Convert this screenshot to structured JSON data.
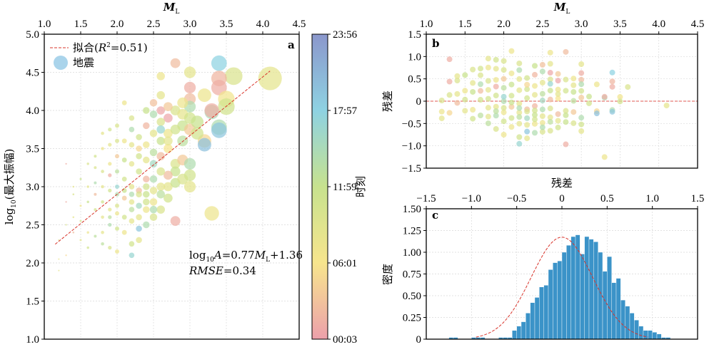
{
  "chart_data": [
    {
      "panel": "a",
      "type": "scatter",
      "xlabel_italic": "M",
      "xlabel_sub": "L",
      "ylabel": "log10(最大振幅)",
      "ylabel_pre": "log",
      "ylabel_sub": "10",
      "ylabel_post": "(最大振幅)",
      "xlim": [
        1.0,
        4.5
      ],
      "ylim": [
        1.0,
        5.0
      ],
      "xticks": [
        "1.0",
        "1.5",
        "2.0",
        "2.5",
        "3.0",
        "3.5",
        "4.0",
        "4.5"
      ],
      "yticks": [
        "1.0",
        "1.5",
        "2.0",
        "2.5",
        "3.0",
        "3.5",
        "4.0",
        "4.5",
        "5.0"
      ],
      "legend": {
        "fit_label_pre": "拟合(",
        "fit_label_r": "R",
        "fit_label_post": "=0.51)",
        "quake_label": "地震"
      },
      "fit": {
        "slope": 0.77,
        "intercept": 1.36,
        "x_range": [
          1.15,
          4.1
        ]
      },
      "equation_pre": "log",
      "equation_sub": "10",
      "equation_a": "A",
      "equation_mid": "=0.77",
      "equation_m": "M",
      "equation_msub": "L",
      "equation_post": "+1.36",
      "rmse_label": "RMSE",
      "rmse_value": "=0.34",
      "colorbar": {
        "label": "时刻",
        "ticks": [
          "00:03",
          "06:01",
          "11:59",
          "17:57",
          "23:56"
        ]
      },
      "points": [
        [
          4.1,
          4.42,
          0.35
        ],
        [
          3.6,
          4.45,
          0.4
        ],
        [
          3.4,
          4.62,
          0.75
        ],
        [
          3.4,
          4.42,
          0.08
        ],
        [
          3.4,
          4.3,
          0.05
        ],
        [
          3.5,
          4.15,
          0.28
        ],
        [
          3.5,
          4.05,
          0.45
        ],
        [
          3.4,
          3.78,
          0.6
        ],
        [
          3.4,
          3.74,
          0.8
        ],
        [
          3.3,
          3.98,
          0.62
        ],
        [
          3.3,
          4.0,
          0.05
        ],
        [
          3.2,
          4.2,
          0.3
        ],
        [
          3.2,
          3.6,
          0.2
        ],
        [
          3.2,
          3.55,
          0.82
        ],
        [
          3.3,
          2.65,
          0.3
        ],
        [
          3.0,
          3.0,
          0.35
        ],
        [
          2.8,
          4.62,
          0.1
        ],
        [
          3.0,
          4.5,
          0.35
        ],
        [
          2.6,
          4.45,
          0.3
        ],
        [
          3.0,
          4.3,
          0.05
        ],
        [
          3.0,
          4.15,
          0.1
        ],
        [
          3.0,
          4.05,
          0.6
        ],
        [
          2.8,
          4.0,
          0.4
        ],
        [
          2.9,
          3.95,
          0.35
        ],
        [
          3.0,
          3.9,
          0.45
        ],
        [
          2.9,
          3.8,
          0.5
        ],
        [
          3.0,
          3.75,
          0.15
        ],
        [
          2.7,
          3.9,
          0.02
        ],
        [
          2.6,
          3.85,
          0.4
        ],
        [
          2.7,
          3.7,
          0.3
        ],
        [
          2.8,
          3.75,
          0.45
        ],
        [
          2.9,
          3.6,
          0.55
        ],
        [
          3.1,
          3.7,
          0.45
        ],
        [
          3.1,
          3.85,
          0.5
        ],
        [
          2.6,
          4.0,
          0.03
        ],
        [
          2.5,
          4.1,
          0.12
        ],
        [
          2.7,
          4.05,
          0.15
        ],
        [
          2.6,
          3.75,
          0.7
        ],
        [
          2.5,
          3.7,
          0.35
        ],
        [
          2.4,
          3.8,
          0.08
        ],
        [
          2.4,
          3.55,
          0.3
        ],
        [
          2.5,
          3.45,
          0.55
        ],
        [
          2.6,
          3.4,
          0.1
        ],
        [
          2.7,
          3.5,
          0.25
        ],
        [
          2.8,
          3.3,
          0.4
        ],
        [
          2.9,
          3.35,
          0.15
        ],
        [
          3.0,
          3.3,
          0.6
        ],
        [
          2.8,
          3.2,
          0.5
        ],
        [
          2.7,
          3.15,
          0.1
        ],
        [
          2.6,
          3.2,
          0.4
        ],
        [
          2.5,
          3.3,
          0.65
        ],
        [
          2.4,
          3.35,
          0.35
        ],
        [
          2.3,
          3.4,
          0.45
        ],
        [
          2.3,
          3.5,
          0.2
        ],
        [
          2.2,
          3.55,
          0.35
        ],
        [
          2.2,
          3.75,
          0.6
        ],
        [
          2.1,
          3.6,
          0.3
        ],
        [
          2.0,
          3.6,
          0.4
        ],
        [
          2.0,
          3.4,
          0.15
        ],
        [
          2.1,
          3.35,
          0.5
        ],
        [
          2.2,
          3.3,
          0.35
        ],
        [
          2.3,
          3.2,
          0.45
        ],
        [
          2.4,
          3.1,
          0.08
        ],
        [
          2.5,
          3.1,
          0.6
        ],
        [
          2.6,
          3.0,
          0.35
        ],
        [
          2.7,
          2.85,
          0.45
        ],
        [
          2.8,
          2.55,
          0.05
        ],
        [
          2.6,
          2.7,
          0.4
        ],
        [
          2.5,
          2.8,
          0.3
        ],
        [
          2.4,
          2.9,
          0.5
        ],
        [
          2.3,
          2.95,
          0.1
        ],
        [
          2.2,
          3.0,
          0.35
        ],
        [
          2.1,
          3.1,
          0.45
        ],
        [
          2.0,
          3.2,
          0.55
        ],
        [
          1.9,
          3.3,
          0.3
        ],
        [
          1.9,
          3.15,
          0.05
        ],
        [
          1.8,
          3.2,
          0.4
        ],
        [
          1.8,
          3.0,
          0.35
        ],
        [
          1.9,
          2.95,
          0.45
        ],
        [
          2.0,
          2.9,
          0.6
        ],
        [
          2.1,
          2.85,
          0.15
        ],
        [
          2.2,
          2.8,
          0.35
        ],
        [
          2.3,
          2.75,
          0.65
        ],
        [
          2.4,
          2.7,
          0.3
        ],
        [
          2.5,
          2.6,
          0.4
        ],
        [
          2.4,
          2.5,
          0.6
        ],
        [
          2.3,
          2.45,
          0.8
        ],
        [
          2.2,
          2.55,
          0.35
        ],
        [
          2.1,
          2.6,
          0.45
        ],
        [
          2.0,
          2.65,
          0.3
        ],
        [
          1.9,
          2.7,
          0.35
        ],
        [
          1.8,
          2.8,
          0.45
        ],
        [
          1.7,
          2.9,
          0.1
        ],
        [
          1.7,
          3.05,
          0.6
        ],
        [
          1.6,
          3.0,
          0.35
        ],
        [
          1.6,
          2.8,
          0.5
        ],
        [
          1.5,
          2.75,
          0.3
        ],
        [
          1.5,
          2.55,
          0.45
        ],
        [
          1.4,
          2.6,
          0.35
        ],
        [
          1.4,
          2.4,
          0.1
        ],
        [
          1.6,
          2.4,
          0.3
        ],
        [
          1.7,
          2.35,
          0.55
        ],
        [
          1.8,
          2.4,
          0.35
        ],
        [
          1.9,
          2.5,
          0.6
        ],
        [
          2.0,
          2.45,
          0.45
        ],
        [
          2.1,
          2.4,
          0.3
        ],
        [
          2.2,
          2.25,
          0.45
        ],
        [
          2.3,
          2.3,
          0.35
        ],
        [
          2.2,
          2.1,
          0.7
        ],
        [
          2.0,
          2.15,
          0.3
        ],
        [
          1.9,
          2.2,
          0.4
        ],
        [
          1.8,
          2.25,
          0.55
        ],
        [
          1.6,
          2.2,
          0.45
        ],
        [
          1.5,
          2.3,
          0.35
        ],
        [
          1.3,
          2.1,
          0.2
        ],
        [
          1.2,
          2.05,
          0.3
        ],
        [
          1.2,
          1.9,
          0.35
        ],
        [
          1.3,
          2.5,
          0.4
        ],
        [
          1.3,
          2.8,
          0.05
        ],
        [
          1.3,
          3.3,
          0.05
        ],
        [
          1.2,
          2.3,
          0.4
        ],
        [
          1.4,
          2.9,
          0.4
        ],
        [
          1.4,
          3.0,
          0.35
        ],
        [
          1.5,
          3.1,
          0.5
        ],
        [
          1.6,
          3.3,
          0.4
        ],
        [
          1.7,
          3.4,
          0.45
        ],
        [
          1.8,
          3.5,
          0.3
        ],
        [
          1.9,
          3.55,
          0.35
        ],
        [
          1.7,
          3.25,
          0.4
        ],
        [
          2.0,
          3.0,
          0.7
        ],
        [
          2.1,
          2.95,
          0.5
        ],
        [
          2.2,
          2.9,
          0.6
        ],
        [
          2.3,
          2.9,
          0.4
        ],
        [
          2.4,
          3.0,
          0.45
        ],
        [
          2.5,
          2.95,
          0.35
        ],
        [
          2.6,
          2.9,
          0.55
        ],
        [
          2.7,
          3.0,
          0.35
        ],
        [
          2.8,
          3.05,
          0.5
        ],
        [
          2.9,
          3.1,
          0.4
        ],
        [
          3.0,
          3.15,
          0.45
        ],
        [
          2.6,
          3.6,
          0.5
        ],
        [
          2.7,
          3.6,
          0.35
        ],
        [
          2.3,
          3.65,
          0.45
        ],
        [
          2.2,
          3.9,
          0.4
        ],
        [
          2.1,
          4.1,
          0.3
        ],
        [
          2.5,
          3.95,
          0.6
        ],
        [
          2.6,
          4.2,
          0.35
        ],
        [
          2.4,
          4.0,
          0.5
        ],
        [
          2.9,
          4.1,
          0.3
        ],
        [
          2.0,
          3.8,
          0.4
        ],
        [
          1.9,
          3.75,
          0.45
        ],
        [
          1.8,
          3.7,
          0.35
        ],
        [
          2.2,
          2.7,
          0.55
        ],
        [
          2.3,
          2.6,
          0.35
        ],
        [
          2.4,
          2.8,
          0.45
        ],
        [
          2.5,
          2.7,
          0.6
        ],
        [
          2.0,
          2.75,
          0.4
        ],
        [
          1.9,
          2.6,
          0.55
        ],
        [
          1.8,
          2.6,
          0.35
        ],
        [
          1.7,
          2.7,
          0.45
        ]
      ]
    },
    {
      "panel": "b",
      "type": "scatter",
      "xlabel_italic": "M",
      "xlabel_sub": "L",
      "ylabel": "残差",
      "xlim": [
        1.0,
        4.5
      ],
      "ylim": [
        -1.5,
        1.5
      ],
      "xticks": [
        "1.0",
        "1.5",
        "2.0",
        "2.5",
        "3.0",
        "3.5",
        "4.0",
        "4.5"
      ],
      "yticks": [
        "−1.5",
        "−1.0",
        "−0.5",
        "0",
        "0.5",
        "1.0",
        "1.5"
      ],
      "zero_line": 0
    },
    {
      "panel": "c",
      "type": "bar",
      "xlabel": "残差",
      "ylabel": "密度",
      "xlim": [
        -1.5,
        1.5
      ],
      "ylim": [
        0,
        1.5
      ],
      "xticks": [
        "−1.5",
        "−1.0",
        "−0.5",
        "0",
        "0.5",
        "1.0",
        "1.5"
      ],
      "yticks": [
        "0",
        "0.25",
        "0.50",
        "0.75",
        "1.00",
        "1.25",
        "1.50"
      ],
      "bin_width": 0.05,
      "bin_start": -1.25,
      "values": [
        0.02,
        0.02,
        0,
        0,
        0,
        0.02,
        0.02,
        0.02,
        0,
        0,
        0,
        0.02,
        0.02,
        0.02,
        0.1,
        0.15,
        0.2,
        0.3,
        0.42,
        0.48,
        0.6,
        0.62,
        0.8,
        0.88,
        0.9,
        1.0,
        1.08,
        1.18,
        1.2,
        0.98,
        1.18,
        1.15,
        1.12,
        1.0,
        0.78,
        0.95,
        0.65,
        0.7,
        0.45,
        0.38,
        0.3,
        0.22,
        0.15,
        0.1,
        0.1,
        0.08,
        0.06,
        0.02,
        0.02
      ],
      "normal_fit": {
        "mean": 0.0,
        "sd": 0.34
      }
    }
  ],
  "panel_letters": {
    "a": "a",
    "b": "b",
    "c": "c"
  }
}
